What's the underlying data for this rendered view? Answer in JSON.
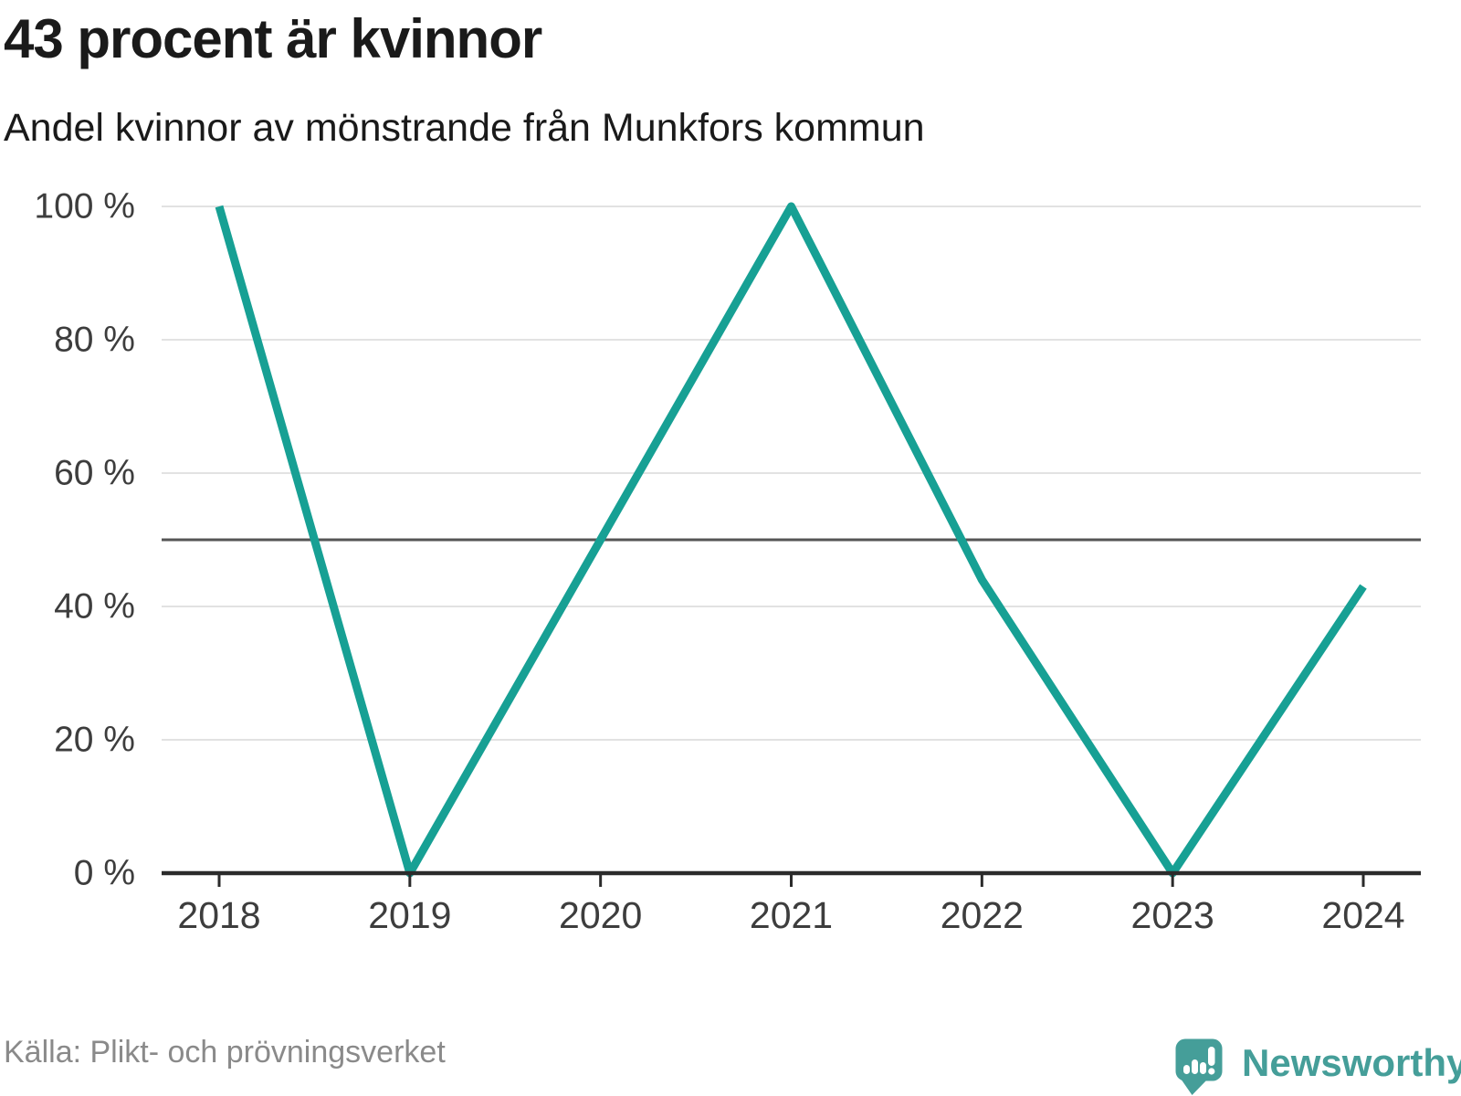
{
  "header": {
    "title": "43 procent är kvinnor",
    "subtitle": "Andel kvinnor av mönstrande från Munkfors kommun"
  },
  "footer": {
    "source": "Källa: Plikt- och prövningsverket",
    "brand": "Newsworthy",
    "logo_icon": "speech-bubble-with-bar-chart-and-exclamation"
  },
  "colors": {
    "line": "#17a094",
    "brand": "#459e99",
    "grid": "#e2e2e2",
    "reference_line": "#555555",
    "axis": "#2b2b2b",
    "tick_label": "#3d3d3d",
    "text": "#1a1a1a",
    "source": "#8a8a8a"
  },
  "chart_data": {
    "type": "line",
    "title": "43 procent är kvinnor",
    "subtitle": "Andel kvinnor av mönstrande från Munkfors kommun",
    "x": [
      2018,
      2019,
      2020,
      2021,
      2022,
      2023,
      2024
    ],
    "xtick_labels": [
      "2018",
      "2019",
      "2020",
      "2021",
      "2022",
      "2023",
      "2024"
    ],
    "series": [
      {
        "name": "Andel kvinnor av mönstrande",
        "values": [
          100,
          0,
          50,
          100,
          44,
          0,
          43
        ]
      }
    ],
    "unit": "%",
    "ylim": [
      0,
      100
    ],
    "yticks": [
      0,
      20,
      40,
      60,
      80,
      100
    ],
    "ytick_labels": [
      "0 %",
      "20 %",
      "40 %",
      "60 %",
      "80 %",
      "100 %"
    ],
    "reference_line": 50,
    "grid": "horizontal",
    "legend": "none"
  }
}
